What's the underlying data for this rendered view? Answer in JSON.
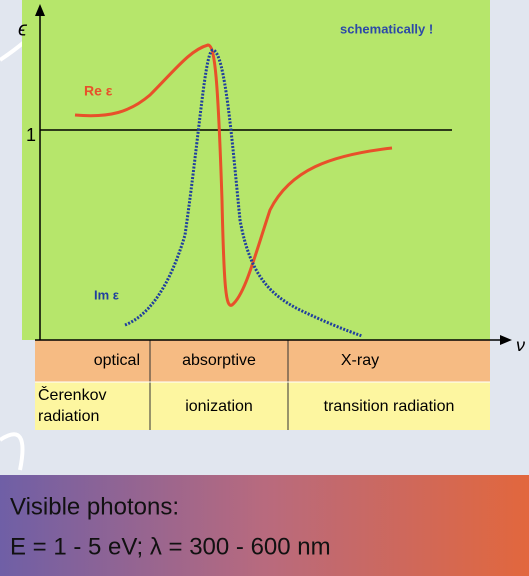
{
  "diagram": {
    "y_axis_label": "ϵ",
    "x_axis_label": "ν",
    "note": "schematically !",
    "re_label": "Re ε",
    "im_label": "Im ε",
    "level_label": "1",
    "table": {
      "rows": [
        [
          "optical",
          "absorptive",
          "X-ray"
        ],
        [
          [
            "Čerenkov",
            "radiation"
          ],
          "ionization",
          "transition radiation"
        ]
      ]
    },
    "box": {
      "lines": [
        "Visible photons:",
        "E = 1 - 5 eV; λ = 300 - 600 nm"
      ]
    }
  }
}
